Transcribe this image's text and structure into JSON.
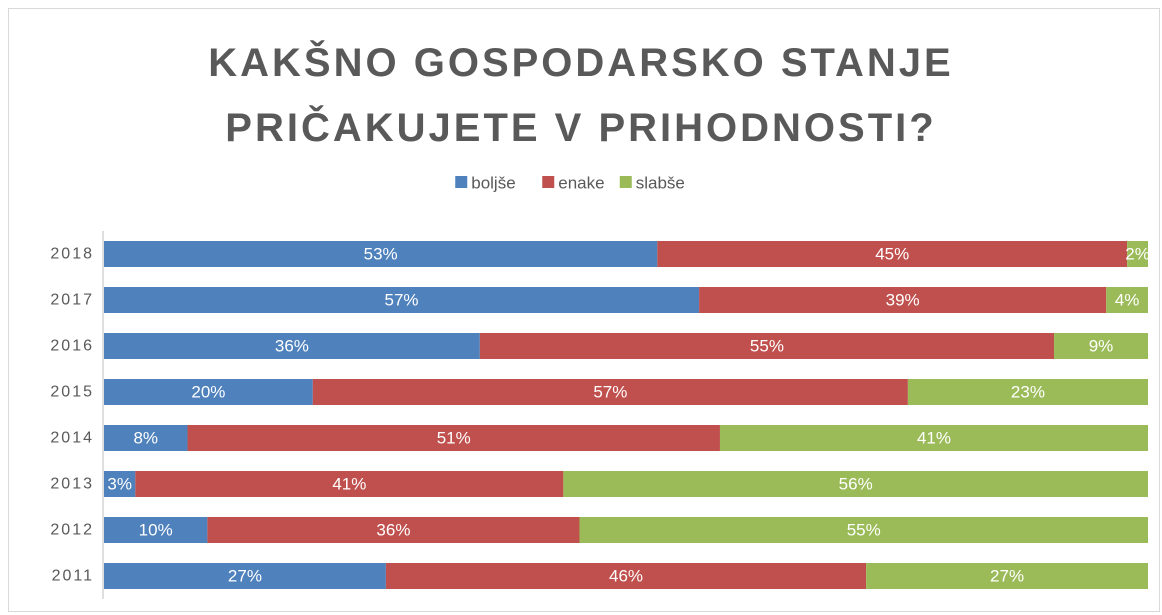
{
  "chart_data": {
    "type": "bar",
    "orientation": "horizontal",
    "stacked": "percent",
    "title": [
      "KAKŠNO GOSPODARSKO STANJE",
      "PRIČAKUJETE V PRIHODNOSTI?"
    ],
    "categories": [
      "2018",
      "2017",
      "2016",
      "2015",
      "2014",
      "2013",
      "2012",
      "2011"
    ],
    "series": [
      {
        "name": "boljše",
        "color": "#4f81bd",
        "values": [
          53,
          57,
          36,
          20,
          8,
          3,
          10,
          27
        ],
        "value_labels": [
          "53%",
          "57%",
          "36%",
          "20%",
          "8%",
          "3%",
          "10%",
          "27%"
        ]
      },
      {
        "name": "enake",
        "color": "#c0504d",
        "values": [
          45,
          39,
          55,
          57,
          51,
          41,
          36,
          46
        ],
        "value_labels": [
          "45%",
          "39%",
          "55%",
          "57%",
          "51%",
          "41%",
          "36%",
          "46%"
        ]
      },
      {
        "name": "slabše",
        "color": "#9bbb59",
        "values": [
          2,
          4,
          9,
          23,
          41,
          56,
          55,
          27
        ],
        "value_labels": [
          "2%",
          "4%",
          "9%",
          "23%",
          "41%",
          "56%",
          "55%",
          "27%"
        ]
      }
    ],
    "legend": "top"
  }
}
